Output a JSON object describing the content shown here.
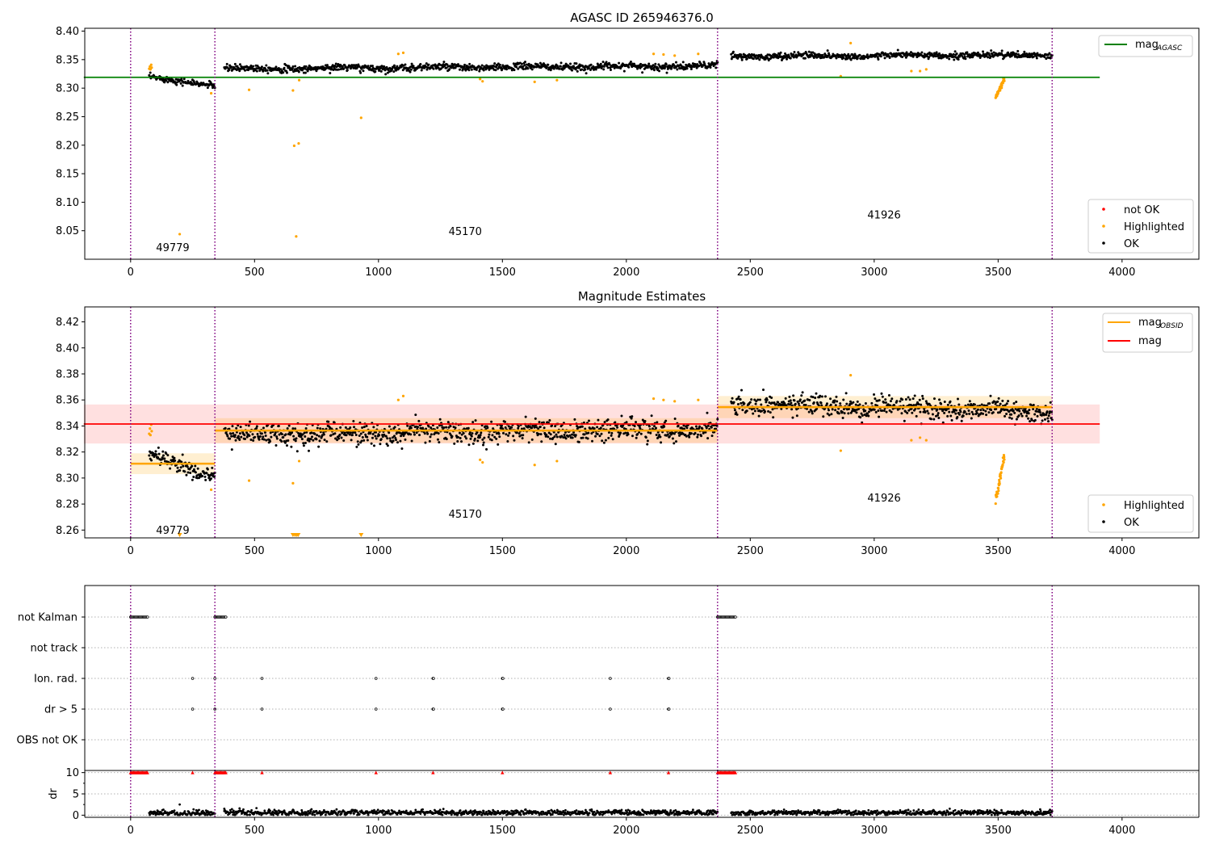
{
  "chart_data": [
    {
      "type": "scatter",
      "title": "AGASC ID 265946376.0",
      "xlim": [
        -185,
        4310
      ],
      "ylim": [
        8.0,
        8.405
      ],
      "x_ticks": [
        0,
        500,
        1000,
        1500,
        2000,
        2500,
        3000,
        3500,
        4000
      ],
      "y_ticks": [
        8.05,
        8.1,
        8.15,
        8.2,
        8.25,
        8.3,
        8.35,
        8.4
      ],
      "obsid_boundaries": [
        0,
        340,
        2368,
        3718
      ],
      "obsid_labels": [
        {
          "text": "49779",
          "x": 170,
          "y": 8.02
        },
        {
          "text": "45170",
          "x": 1350,
          "y": 8.048
        },
        {
          "text": "41926",
          "x": 3040,
          "y": 8.077
        }
      ],
      "reference_lines": [
        {
          "name": "mag",
          "subscript": "AGASC",
          "y": 8.319,
          "x_range": [
            0,
            3910
          ],
          "color": "#008000"
        }
      ],
      "segments": [
        {
          "x": [
            75,
            340
          ],
          "y_start": 8.318,
          "y_end": 8.306,
          "scatter": 0.004
        },
        {
          "x": [
            378,
            2368
          ],
          "y_start": 8.334,
          "y_end": 8.339,
          "scatter": 0.0045
        },
        {
          "x": [
            2423,
            3718
          ],
          "y_start": 8.356,
          "y_end": 8.358,
          "scatter": 0.004
        }
      ],
      "highlighted_points": [
        {
          "x": 75,
          "y": 8.334
        },
        {
          "x": 78,
          "y": 8.338
        },
        {
          "x": 80,
          "y": 8.333
        },
        {
          "x": 83,
          "y": 8.341
        },
        {
          "x": 85,
          "y": 8.336
        },
        {
          "x": 198,
          "y": 8.044
        },
        {
          "x": 325,
          "y": 8.291
        },
        {
          "x": 478,
          "y": 8.297
        },
        {
          "x": 655,
          "y": 8.296
        },
        {
          "x": 660,
          "y": 8.199
        },
        {
          "x": 668,
          "y": 8.04
        },
        {
          "x": 678,
          "y": 8.203
        },
        {
          "x": 680,
          "y": 8.314
        },
        {
          "x": 930,
          "y": 8.248
        },
        {
          "x": 1080,
          "y": 8.36
        },
        {
          "x": 1100,
          "y": 8.362
        },
        {
          "x": 1410,
          "y": 8.316
        },
        {
          "x": 1420,
          "y": 8.312
        },
        {
          "x": 1630,
          "y": 8.311
        },
        {
          "x": 1720,
          "y": 8.314
        },
        {
          "x": 2110,
          "y": 8.36
        },
        {
          "x": 2150,
          "y": 8.359
        },
        {
          "x": 2195,
          "y": 8.357
        },
        {
          "x": 2290,
          "y": 8.36
        },
        {
          "x": 2865,
          "y": 8.321
        },
        {
          "x": 2905,
          "y": 8.379
        },
        {
          "x": 3150,
          "y": 8.33
        },
        {
          "x": 3185,
          "y": 8.33
        },
        {
          "x": 3210,
          "y": 8.333
        }
      ],
      "highlighted_cluster": {
        "x": [
          3490,
          3525
        ],
        "y": [
          8.283,
          8.316
        ]
      },
      "legends": [
        {
          "placement": "upper-right",
          "entries": [
            {
              "label": "mag",
              "subscript": "AGASC",
              "marker": "line",
              "color": "#008000"
            }
          ]
        },
        {
          "placement": "lower-right",
          "entries": [
            {
              "label": "not OK",
              "marker": "dot",
              "color": "#ff0000"
            },
            {
              "label": "Highlighted",
              "marker": "dot",
              "color": "#ffa500"
            },
            {
              "label": "OK",
              "marker": "dot",
              "color": "#000000"
            }
          ]
        }
      ]
    },
    {
      "type": "scatter",
      "title": "Magnitude Estimates",
      "xlim": [
        -185,
        4310
      ],
      "ylim": [
        8.254,
        8.4315
      ],
      "x_ticks": [
        0,
        500,
        1000,
        1500,
        2000,
        2500,
        3000,
        3500,
        4000
      ],
      "y_ticks": [
        8.26,
        8.28,
        8.3,
        8.32,
        8.34,
        8.36,
        8.38,
        8.4,
        8.42
      ],
      "obsid_boundaries": [
        0,
        340,
        2368,
        3718
      ],
      "obsid_labels": [
        {
          "text": "49779",
          "x": 170,
          "y": 8.2595
        },
        {
          "text": "45170",
          "x": 1350,
          "y": 8.272
        },
        {
          "text": "41926",
          "x": 3040,
          "y": 8.2845
        }
      ],
      "mag": {
        "name": "mag",
        "y": 8.3415,
        "band": [
          8.3265,
          8.3565
        ],
        "x_range": [
          0,
          3910
        ],
        "color": "#ff0000"
      },
      "mag_obsid": [
        {
          "x": [
            0,
            340
          ],
          "y": 8.311,
          "band": [
            8.303,
            8.319
          ]
        },
        {
          "x": [
            340,
            2368
          ],
          "y": 8.3365,
          "band": [
            8.327,
            8.346
          ]
        },
        {
          "x": [
            2368,
            3718
          ],
          "y": 8.3545,
          "band": [
            8.346,
            8.363
          ]
        }
      ],
      "segments": [
        {
          "x": [
            75,
            340
          ],
          "y_start": 8.317,
          "y_end": 8.302,
          "scatter": 0.0045
        },
        {
          "x": [
            378,
            2368
          ],
          "y_start": 8.333,
          "y_end": 8.338,
          "scatter": 0.006
        },
        {
          "x": [
            2423,
            3718
          ],
          "y_start": 8.357,
          "y_end": 8.351,
          "scatter": 0.0055
        }
      ],
      "highlighted_points": [
        {
          "x": 75,
          "y": 8.334
        },
        {
          "x": 78,
          "y": 8.338
        },
        {
          "x": 80,
          "y": 8.333
        },
        {
          "x": 83,
          "y": 8.341
        },
        {
          "x": 85,
          "y": 8.336
        },
        {
          "x": 325,
          "y": 8.291
        },
        {
          "x": 478,
          "y": 8.298
        },
        {
          "x": 655,
          "y": 8.296
        },
        {
          "x": 680,
          "y": 8.313
        },
        {
          "x": 1080,
          "y": 8.36
        },
        {
          "x": 1100,
          "y": 8.363
        },
        {
          "x": 1410,
          "y": 8.314
        },
        {
          "x": 1420,
          "y": 8.312
        },
        {
          "x": 1630,
          "y": 8.31
        },
        {
          "x": 1720,
          "y": 8.313
        },
        {
          "x": 2110,
          "y": 8.361
        },
        {
          "x": 2150,
          "y": 8.36
        },
        {
          "x": 2195,
          "y": 8.359
        },
        {
          "x": 2290,
          "y": 8.36
        },
        {
          "x": 2865,
          "y": 8.321
        },
        {
          "x": 2905,
          "y": 8.379
        },
        {
          "x": 3150,
          "y": 8.329
        },
        {
          "x": 3185,
          "y": 8.331
        },
        {
          "x": 3210,
          "y": 8.329
        }
      ],
      "highlighted_cluster": {
        "x": [
          3490,
          3525
        ],
        "y": [
          8.283,
          8.316
        ]
      },
      "clipped_markers_x": [
        198,
        655,
        663,
        670,
        676,
        930
      ],
      "legends": [
        {
          "placement": "upper-right",
          "entries": [
            {
              "label": "mag",
              "subscript": "OBSID",
              "marker": "line",
              "color": "#ffa500"
            },
            {
              "label": "mag",
              "marker": "line",
              "color": "#ff0000"
            }
          ]
        },
        {
          "placement": "lower-right",
          "entries": [
            {
              "label": "Highlighted",
              "marker": "dot",
              "color": "#ffa500"
            },
            {
              "label": "OK",
              "marker": "dot",
              "color": "#000000"
            }
          ]
        }
      ]
    },
    {
      "type": "scatter",
      "xlim": [
        -185,
        4310
      ],
      "x_ticks": [
        0,
        500,
        1000,
        1500,
        2000,
        2500,
        3000,
        3500,
        4000
      ],
      "obsid_boundaries": [
        0,
        340,
        2368,
        3718
      ],
      "flag_rows": [
        "not Kalman",
        "not track",
        "Ion. rad.",
        "dr > 5",
        "OBS not OK"
      ],
      "flags": {
        "not Kalman": [
          [
            0,
            70
          ],
          [
            340,
            385
          ],
          [
            2368,
            2440
          ]
        ],
        "not track": [],
        "Ion. rad.": [
          250,
          340,
          530,
          990,
          1220,
          1222,
          1500,
          1502,
          1935,
          2170,
          2172
        ],
        "dr > 5": [
          250,
          340,
          530,
          990,
          1220,
          1222,
          1500,
          1502,
          1935,
          2170,
          2172
        ],
        "OBS not OK": []
      }
    },
    {
      "type": "scatter",
      "ylabel": "dr",
      "xlim": [
        -185,
        4310
      ],
      "ylim": [
        -0.5,
        10.5
      ],
      "x_ticks": [
        0,
        500,
        1000,
        1500,
        2000,
        2500,
        3000,
        3500,
        4000
      ],
      "y_ticks": [
        0,
        5,
        10
      ],
      "obsid_boundaries": [
        0,
        340,
        2368,
        3718
      ],
      "clipped_at": 10,
      "clipped_x": [
        [
          0,
          70
        ],
        [
          340,
          385
        ],
        [
          2368,
          2440
        ],
        250,
        530,
        990,
        1220,
        1500,
        1935,
        2170
      ],
      "segments": [
        {
          "x": [
            75,
            340
          ],
          "median": 0.5
        },
        {
          "x": [
            378,
            2368
          ],
          "median": 0.6
        },
        {
          "x": [
            2423,
            3718
          ],
          "median": 0.6
        }
      ],
      "outliers": [
        {
          "x": 198,
          "y": 2.5
        },
        {
          "x": 378,
          "y": 1.5
        }
      ]
    }
  ]
}
